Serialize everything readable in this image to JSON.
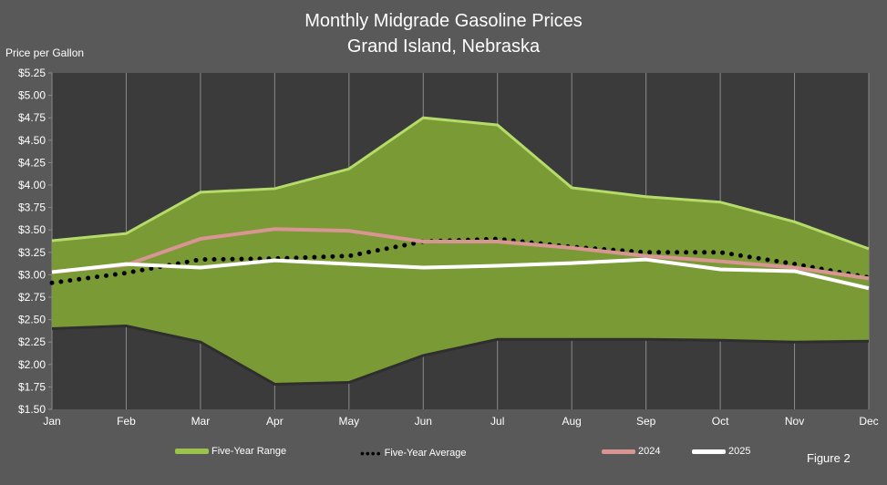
{
  "chart_data": {
    "type": "area",
    "title": "Monthly Midgrade Gasoline Prices",
    "subtitle": "Grand Island, Nebraska",
    "ylabel": "Price per Gallon",
    "xlabel": "",
    "ylim": [
      1.5,
      5.25
    ],
    "yticks": [
      "$1.50",
      "$1.75",
      "$2.00",
      "$2.25",
      "$2.50",
      "$2.75",
      "$3.00",
      "$3.25",
      "$3.50",
      "$3.75",
      "$4.00",
      "$4.25",
      "$4.50",
      "$4.75",
      "$5.00",
      "$5.25"
    ],
    "categories": [
      "Jan",
      "Feb",
      "Mar",
      "Apr",
      "May",
      "Jun",
      "Jul",
      "Aug",
      "Sep",
      "Oct",
      "Nov",
      "Dec"
    ],
    "grid": "vertical",
    "legend_position": "bottom",
    "range": {
      "name": "Five-Year Range",
      "color": "#7a9a35",
      "high": [
        3.38,
        3.46,
        3.92,
        3.96,
        4.18,
        4.75,
        4.67,
        3.97,
        3.87,
        3.81,
        3.59,
        3.29
      ],
      "low": [
        2.4,
        2.43,
        2.25,
        1.78,
        1.8,
        2.1,
        2.28,
        2.28,
        2.28,
        2.27,
        2.25,
        2.26
      ]
    },
    "series": [
      {
        "name": "Five-Year Average",
        "color": "#000000",
        "style": "dotted",
        "values": [
          2.91,
          3.02,
          3.17,
          3.18,
          3.21,
          3.37,
          3.4,
          3.31,
          3.25,
          3.25,
          3.12,
          2.97
        ]
      },
      {
        "name": "2024",
        "color": "#d99594",
        "style": "solid",
        "values": [
          3.03,
          3.11,
          3.4,
          3.51,
          3.49,
          3.37,
          3.37,
          3.3,
          3.21,
          3.15,
          3.08,
          2.96
        ]
      },
      {
        "name": "2025",
        "color": "#ffffff",
        "style": "solid",
        "values": [
          3.03,
          3.12,
          3.08,
          3.16,
          3.12,
          3.08,
          3.1,
          3.13,
          3.17,
          3.06,
          3.04,
          2.85
        ]
      }
    ]
  },
  "footer": "Figure 2"
}
